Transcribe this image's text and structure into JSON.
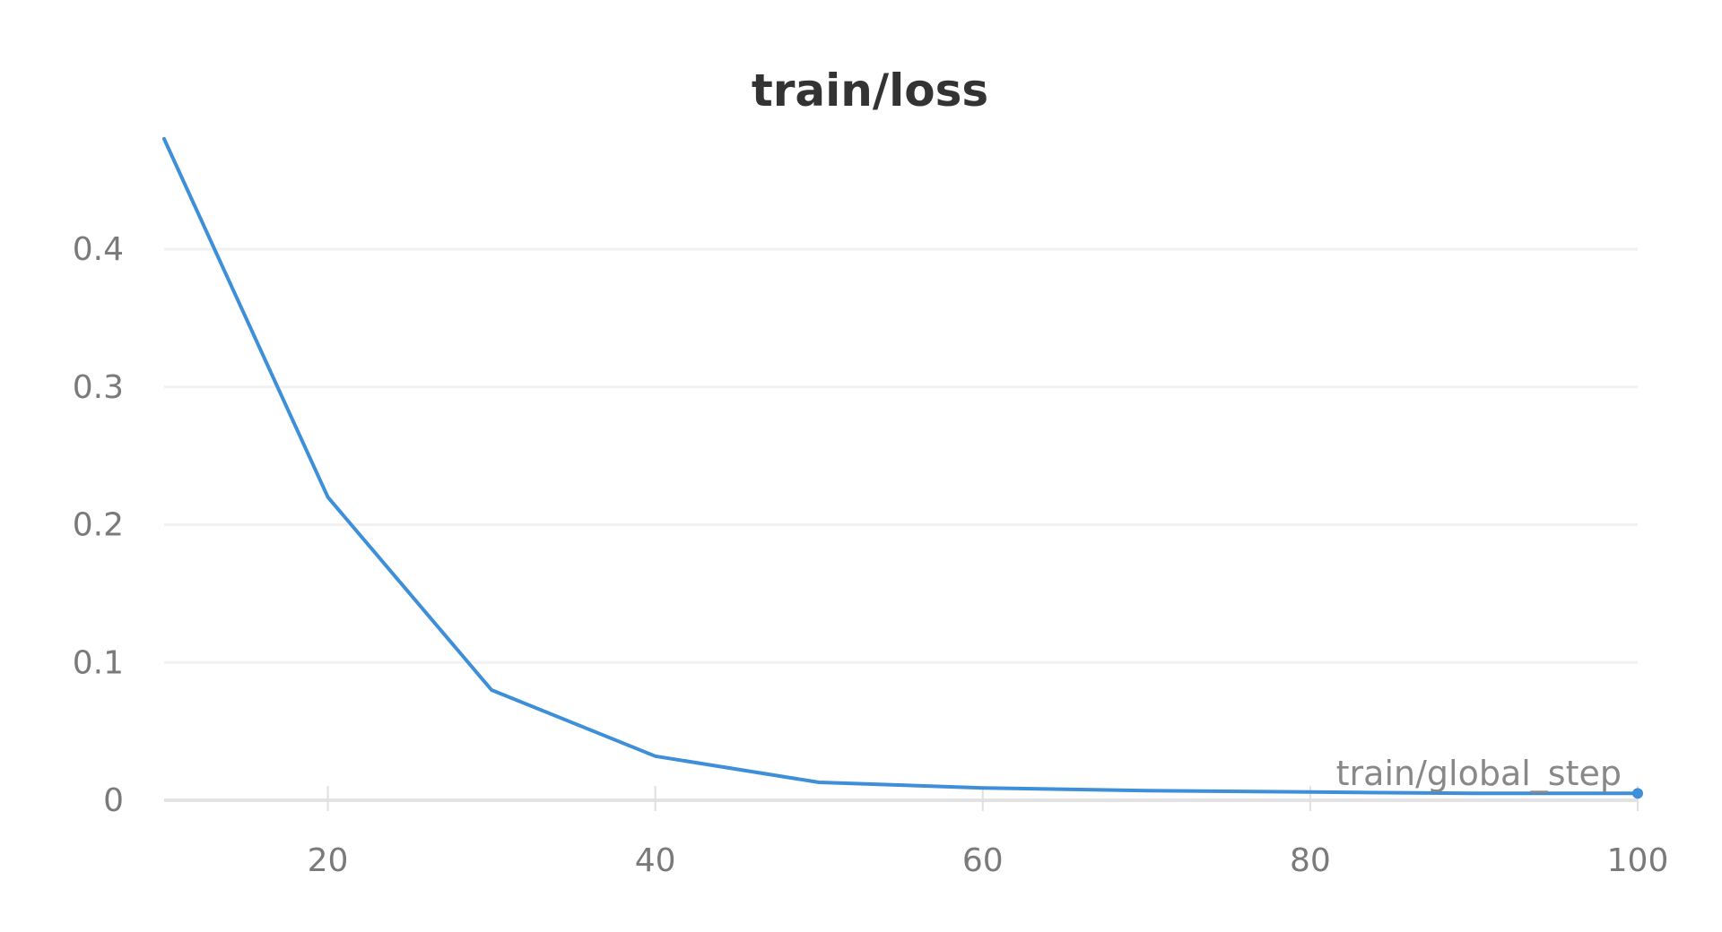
{
  "chart_data": {
    "type": "line",
    "title": "train/loss",
    "xlabel": "train/global_step",
    "ylabel": "",
    "xlim": [
      10,
      100
    ],
    "ylim": [
      0,
      0.48
    ],
    "xticks": [
      20,
      40,
      60,
      80,
      100
    ],
    "yticks": [
      0,
      0.1,
      0.2,
      0.3,
      0.4
    ],
    "ytick_labels": [
      "0",
      "0.1",
      "0.2",
      "0.3",
      "0.4"
    ],
    "grid": true,
    "legend": "none",
    "series": [
      {
        "color": "#3d8fd9",
        "x": [
          10,
          20,
          30,
          40,
          50,
          60,
          70,
          80,
          90,
          100
        ],
        "y": [
          0.48,
          0.22,
          0.08,
          0.032,
          0.013,
          0.009,
          0.007,
          0.006,
          0.005,
          0.005
        ]
      }
    ]
  }
}
